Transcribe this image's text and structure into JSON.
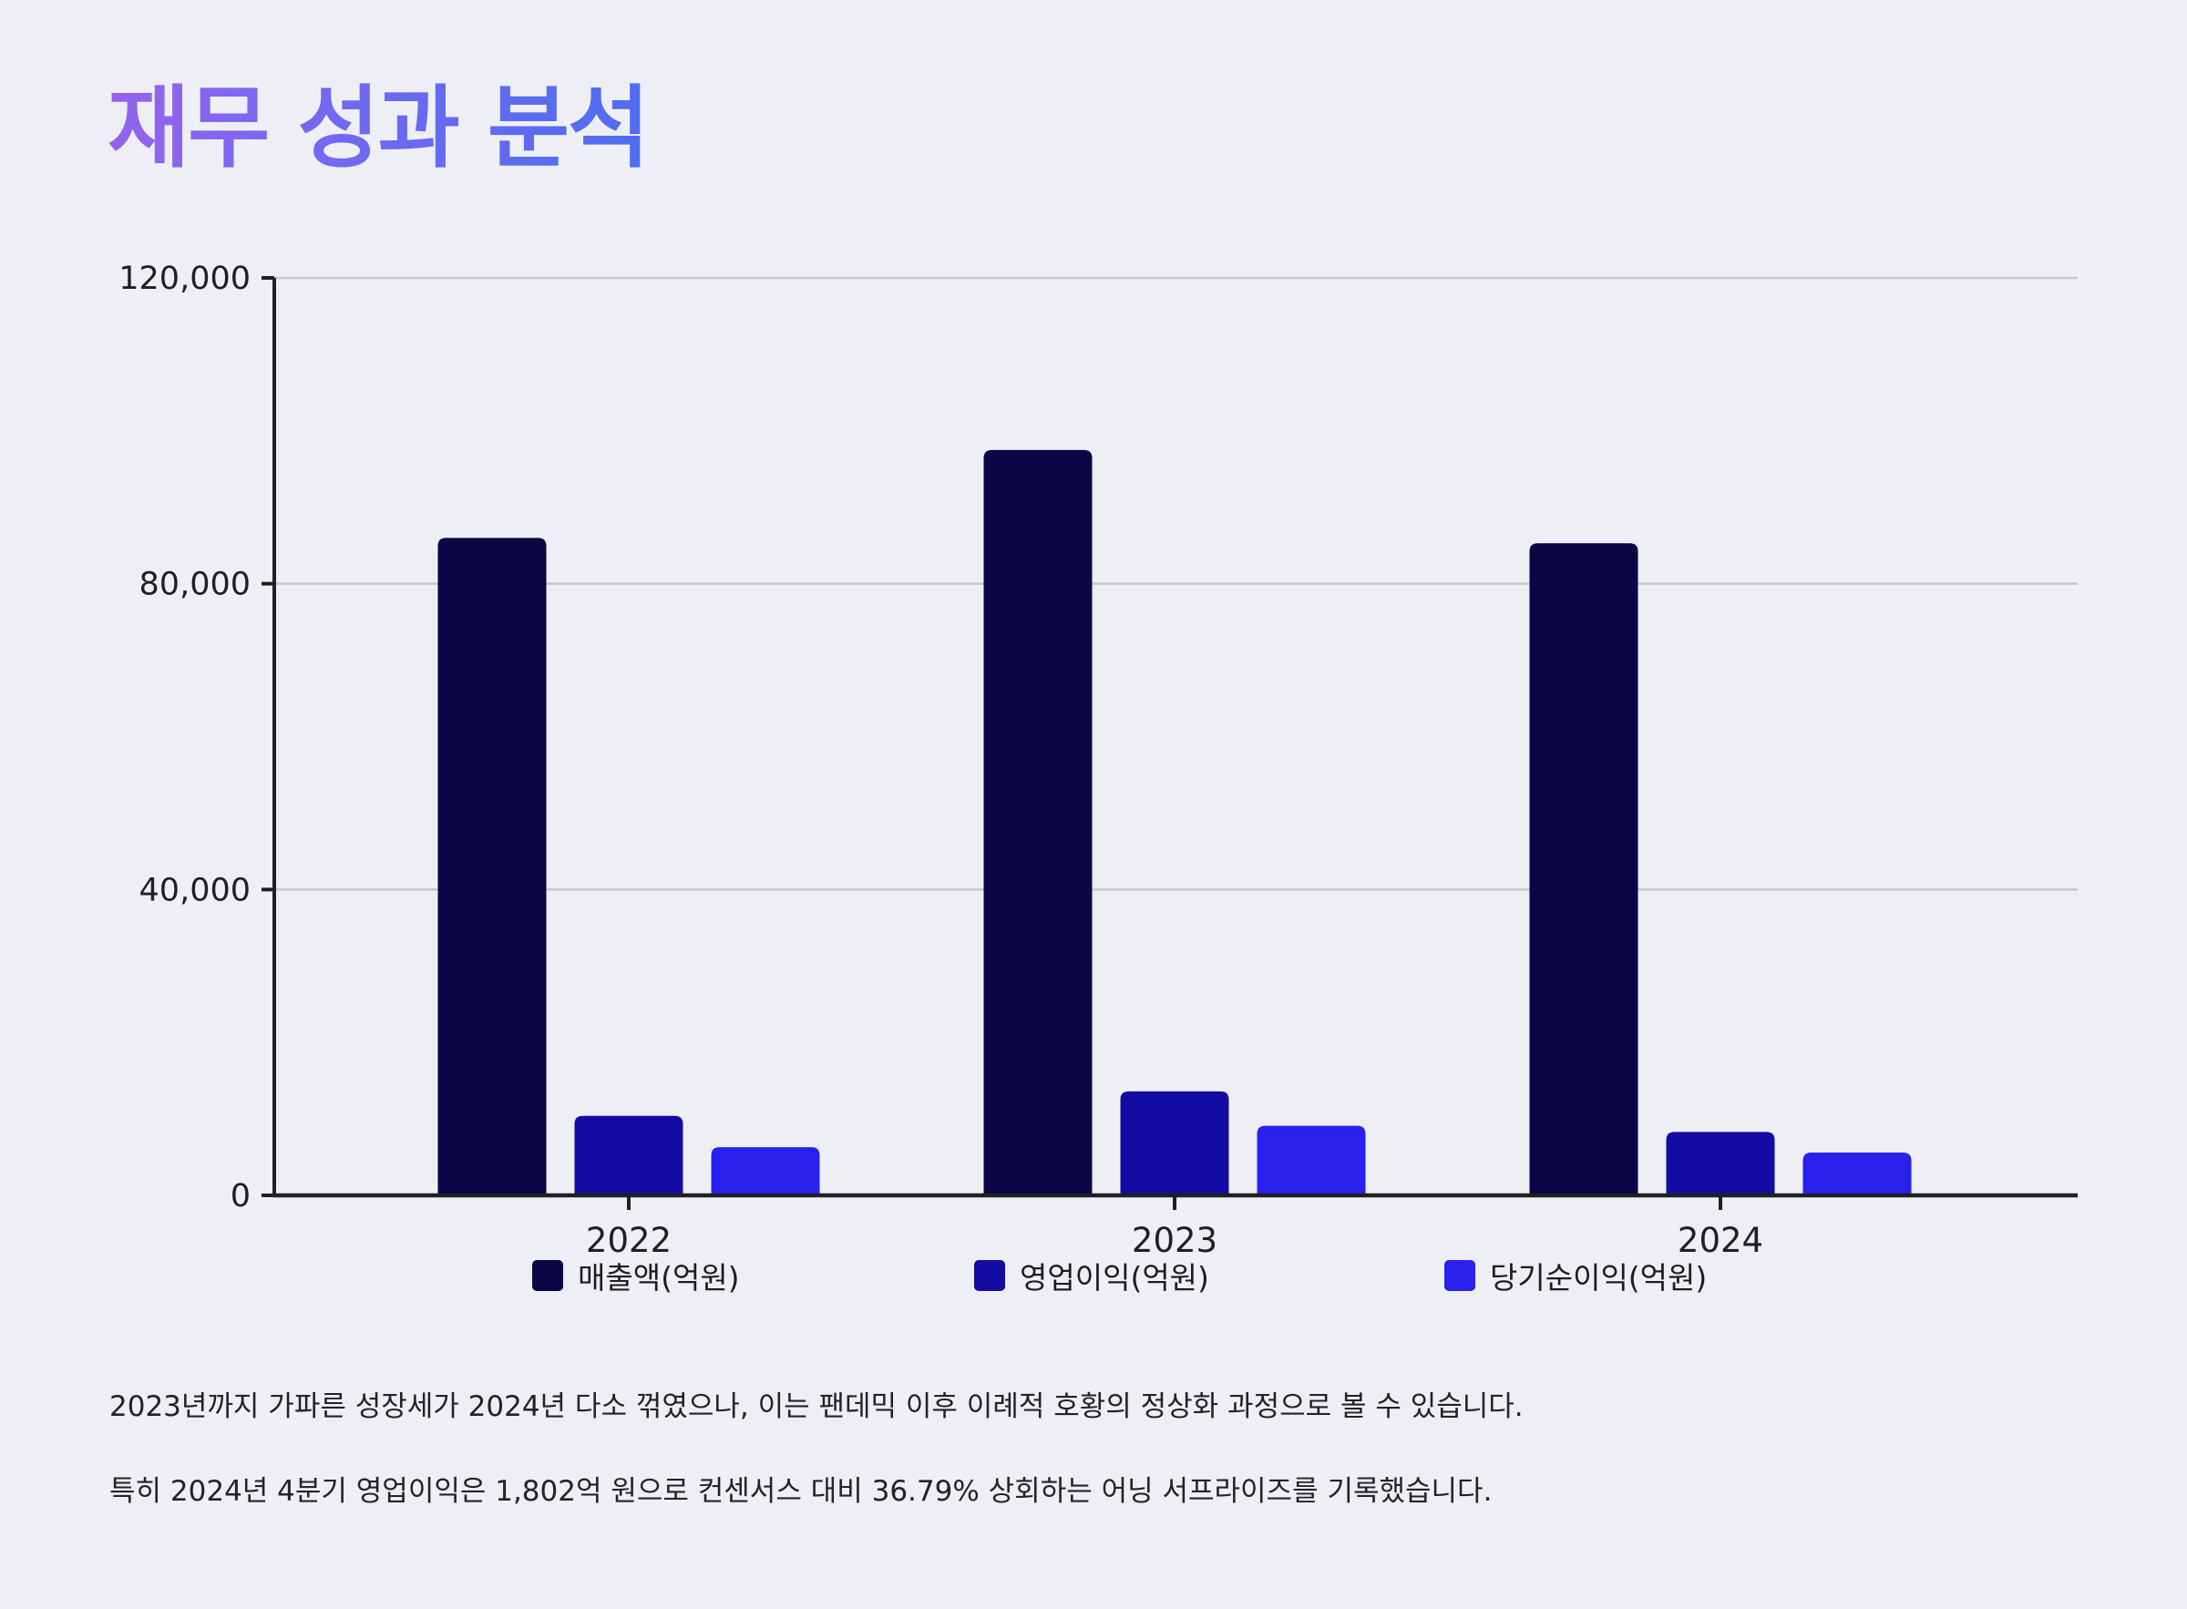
{
  "page": {
    "title": "재무 성과 분석"
  },
  "chart_data": {
    "type": "bar",
    "categories": [
      "2022",
      "2023",
      "2024"
    ],
    "series": [
      {
        "name": "매출액(억원)",
        "color": "#0b0645",
        "values": [
          86000,
          97500,
          85300
        ]
      },
      {
        "name": "영업이익(억원)",
        "color": "#140ca2",
        "values": [
          10400,
          13600,
          8300
        ]
      },
      {
        "name": "당기순이익(억원)",
        "color": "#2a21ef",
        "values": [
          6300,
          9100,
          5600
        ]
      }
    ],
    "ylim": [
      0,
      120000
    ],
    "yticks": [
      0,
      40000,
      80000,
      120000
    ],
    "ytick_labels": [
      "0",
      "40,000",
      "80,000",
      "120,000"
    ],
    "grid": true,
    "legend_placement": "bottom",
    "xlabel": "",
    "ylabel": ""
  },
  "commentary": [
    "2023년까지 가파른 성장세가 2024년 다소 꺾였으나, 이는 팬데믹 이후 이례적 호황의 정상화 과정으로 볼 수 있습니다.",
    "특히 2024년 4분기 영업이익은 1,802억 원으로 컨센서스 대비 36.79% 상회하는 어닝 서프라이즈를 기록했습니다."
  ]
}
